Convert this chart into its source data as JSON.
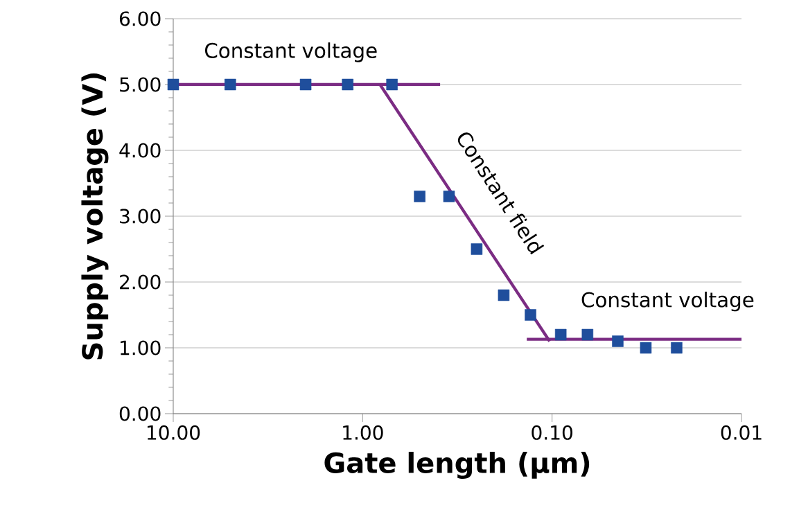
{
  "chart_data": {
    "type": "scatter",
    "xlabel": "Gate length (μm)",
    "ylabel": "Supply voltage (V)",
    "log": "x",
    "xlim": [
      10,
      0.01
    ],
    "ylim": [
      0,
      6
    ],
    "xticks": [
      {
        "value": 10,
        "label": "10.00"
      },
      {
        "value": 1,
        "label": "1.00"
      },
      {
        "value": 0.1,
        "label": "0.10"
      },
      {
        "value": 0.01,
        "label": "0.01"
      }
    ],
    "yticks": [
      {
        "value": 0,
        "label": "0.00"
      },
      {
        "value": 1,
        "label": "1.00"
      },
      {
        "value": 2,
        "label": "2.00"
      },
      {
        "value": 3,
        "label": "3.00"
      },
      {
        "value": 4,
        "label": "4.00"
      },
      {
        "value": 5,
        "label": "5.00"
      },
      {
        "value": 6,
        "label": "6.00"
      }
    ],
    "grid": "y",
    "series": [
      {
        "marker": "square",
        "color": "#1f4e9c",
        "x": [
          10,
          5,
          2,
          1.2,
          0.7,
          0.5,
          0.35,
          0.25,
          0.18,
          0.13,
          0.09,
          0.065,
          0.045,
          0.032,
          0.022
        ],
        "values": [
          5,
          5,
          5,
          5,
          5,
          3.3,
          3.3,
          2.5,
          1.8,
          1.5,
          1.2,
          1.2,
          1.1,
          1.0,
          1.0
        ]
      },
      {
        "type": "line",
        "marker": "none",
        "color": "#7b2c83",
        "x": [
          10,
          0.39
        ],
        "values": [
          5.0,
          5.0
        ]
      },
      {
        "type": "line",
        "marker": "none",
        "color": "#7b2c83",
        "x": [
          0.81,
          0.103
        ],
        "values": [
          5.0,
          1.1
        ]
      },
      {
        "type": "line",
        "marker": "none",
        "color": "#7b2c83",
        "x": [
          0.136,
          0.01
        ],
        "values": [
          1.13,
          1.13
        ]
      }
    ],
    "annotations": [
      "Constant voltage",
      "Constant field",
      "Constant voltage"
    ]
  }
}
